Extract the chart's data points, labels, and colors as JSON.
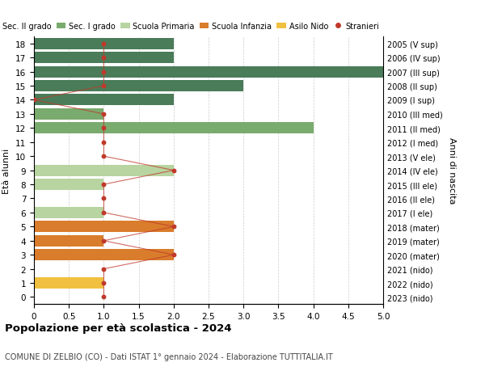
{
  "ages": [
    18,
    17,
    16,
    15,
    14,
    13,
    12,
    11,
    10,
    9,
    8,
    7,
    6,
    5,
    4,
    3,
    2,
    1,
    0
  ],
  "years": [
    "2005 (V sup)",
    "2006 (IV sup)",
    "2007 (III sup)",
    "2008 (II sup)",
    "2009 (I sup)",
    "2010 (III med)",
    "2011 (II med)",
    "2012 (I med)",
    "2013 (V ele)",
    "2014 (IV ele)",
    "2015 (III ele)",
    "2016 (II ele)",
    "2017 (I ele)",
    "2018 (mater)",
    "2019 (mater)",
    "2020 (mater)",
    "2021 (nido)",
    "2022 (nido)",
    "2023 (nido)"
  ],
  "bar_values": [
    2,
    2,
    5,
    3,
    2,
    1,
    4,
    0,
    0,
    2,
    1,
    0,
    1,
    2,
    1,
    2,
    0,
    1,
    0
  ],
  "bar_colors": [
    "#4a7c59",
    "#4a7c59",
    "#4a7c59",
    "#4a7c59",
    "#4a7c59",
    "#7aab6e",
    "#7aab6e",
    "#7aab6e",
    "#b8d4a0",
    "#b8d4a0",
    "#b8d4a0",
    "#b8d4a0",
    "#b8d4a0",
    "#d97c2c",
    "#d97c2c",
    "#d97c2c",
    "#f0c040",
    "#f0c040",
    "#f0c040"
  ],
  "stranieri_values": [
    1,
    1,
    1,
    1,
    0,
    1,
    1,
    1,
    1,
    2,
    1,
    1,
    1,
    2,
    1,
    2,
    1,
    1,
    1
  ],
  "xlim": [
    0,
    5.0
  ],
  "ylim": [
    -0.5,
    18.5
  ],
  "ylabel": "Età alunni",
  "right_ylabel": "Anni di nascita",
  "title": "Popolazione per età scolastica - 2024",
  "subtitle": "COMUNE DI ZELBIO (CO) - Dati ISTAT 1° gennaio 2024 - Elaborazione TUTTITALIA.IT",
  "legend_labels": [
    "Sec. II grado",
    "Sec. I grado",
    "Scuola Primaria",
    "Scuola Infanzia",
    "Asilo Nido",
    "Stranieri"
  ],
  "legend_colors": [
    "#4a7c59",
    "#7aab6e",
    "#b8d4a0",
    "#d97c2c",
    "#f0c040",
    "#c0392b"
  ],
  "stranieri_color": "#c0392b",
  "xticks": [
    0,
    0.5,
    1.0,
    1.5,
    2.0,
    2.5,
    3.0,
    3.5,
    4.0,
    4.5,
    5.0
  ],
  "xtick_labels": [
    "0",
    "0.5",
    "1.0",
    "1.5",
    "2.0",
    "2.5",
    "3.0",
    "3.5",
    "4.0",
    "4.5",
    "5.0"
  ],
  "grid_color": "#cccccc",
  "bar_height": 0.8
}
